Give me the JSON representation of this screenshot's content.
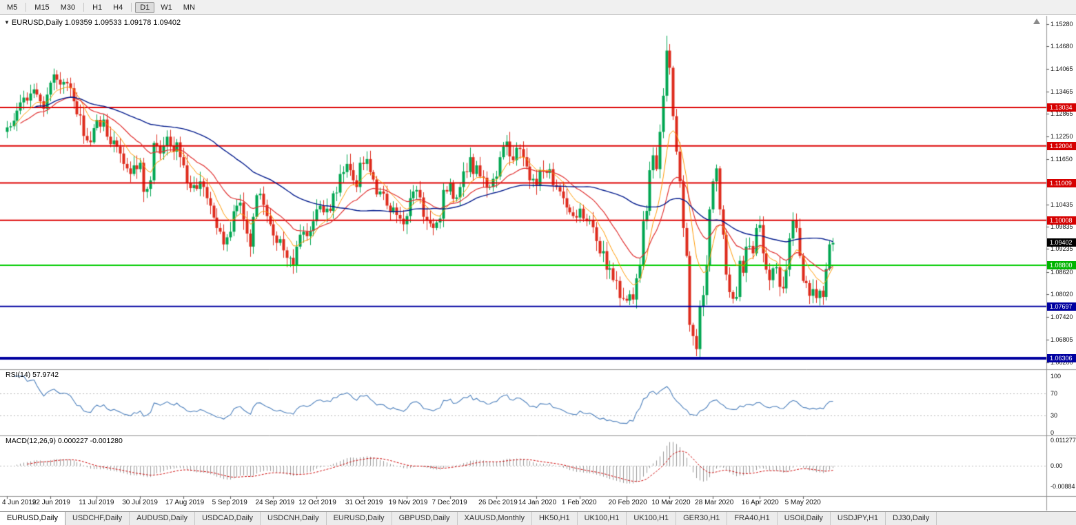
{
  "toolbar": {
    "groups": [
      [
        "M5"
      ],
      [
        "M15",
        "M30"
      ],
      [
        "H1",
        "H4"
      ],
      [
        "D1",
        "W1",
        "MN"
      ]
    ],
    "active": "D1"
  },
  "chart": {
    "title": "EURUSD,Daily 1.09359 1.09533 1.09178 1.09402",
    "price_axis": {
      "grid": [
        "1.15280",
        "1.14680",
        "1.14065",
        "1.13465",
        "1.12865",
        "1.12250",
        "1.11650",
        "1.10435",
        "1.09835",
        "1.09235",
        "1.08620",
        "1.08020",
        "1.07420",
        "1.06805",
        "1.06200"
      ],
      "badges": [
        {
          "text": "1.13034",
          "color": "#d60000"
        },
        {
          "text": "1.12004",
          "color": "#d60000"
        },
        {
          "text": "1.11009",
          "color": "#d60000"
        },
        {
          "text": "1.10008",
          "color": "#d60000"
        },
        {
          "text": "1.09402",
          "color": "#000000"
        },
        {
          "text": "1.08800",
          "color": "#00b400"
        },
        {
          "text": "1.07697",
          "color": "#0000a0"
        },
        {
          "text": "1.06306",
          "color": "#0000a0"
        }
      ]
    },
    "levels": {
      "red": [
        1.13034,
        1.12004,
        1.11009,
        1.10008
      ],
      "green": [
        1.088
      ],
      "blue": [
        {
          "p": 1.07697,
          "w": 2
        },
        {
          "p": 1.06306,
          "w": 4
        }
      ]
    },
    "time_axis": [
      {
        "t": "4 Jun 2019",
        "i": 0
      },
      {
        "t": "22 Jun 2019",
        "i": 13
      },
      {
        "t": "11 Jul 2019",
        "i": 27
      },
      {
        "t": "30 Jul 2019",
        "i": 40
      },
      {
        "t": "17 Aug 2019",
        "i": 53
      },
      {
        "t": "5 Sep 2019",
        "i": 67
      },
      {
        "t": "24 Sep 2019",
        "i": 80
      },
      {
        "t": "12 Oct 2019",
        "i": 93
      },
      {
        "t": "31 Oct 2019",
        "i": 107
      },
      {
        "t": "19 Nov 2019",
        "i": 120
      },
      {
        "t": "7 Dec 2019",
        "i": 133
      },
      {
        "t": "26 Dec 2019",
        "i": 147
      },
      {
        "t": "14 Jan 2020",
        "i": 159
      },
      {
        "t": "1 Feb 2020",
        "i": 172
      },
      {
        "t": "20 Feb 2020",
        "i": 186
      },
      {
        "t": "10 Mar 2020",
        "i": 199
      },
      {
        "t": "28 Mar 2020",
        "i": 212
      },
      {
        "t": "16 Apr 2020",
        "i": 226
      },
      {
        "t": "5 May 2020",
        "i": 239
      }
    ]
  },
  "rsi_panel": {
    "header": "RSI(14) 57.9742",
    "value": 57.9742,
    "axis": [
      "100",
      "70",
      "30",
      "0"
    ],
    "levels": [
      70,
      30
    ]
  },
  "macd_panel": {
    "header": "MACD(12,26,9) 0.000227 -0.001280",
    "main": 0.000227,
    "signal": -0.00128,
    "axis": [
      "0.011277",
      "0.00",
      "-0.00884"
    ]
  },
  "tabs": {
    "items": [
      "EURUSD,Daily",
      "USDCHF,Daily",
      "AUDUSD,Daily",
      "USDCAD,Daily",
      "USDCNH,Daily",
      "EURUSD,Daily",
      "GBPUSD,Daily",
      "XAUUSD,Monthly",
      "HK50,H1",
      "UK100,H1",
      "UK100,H1",
      "GER30,H1",
      "FRA40,H1",
      "USOil,Daily",
      "USDJPY,H1",
      "DJ30,Daily"
    ],
    "active_index": 0
  },
  "colors": {
    "up": "#00a651",
    "down": "#de2b1c",
    "res_red": "#dd0000",
    "sup_green": "#00cc00",
    "sup_blue": "#0000a0",
    "ma_fast": "#ff9900",
    "ma_mid": "#e03030",
    "ma_slow": "#001a8c",
    "rsi_line": "#4a7ebb",
    "macd_hist": "#9a9a9a",
    "macd_signal": "#cc0000",
    "divider": "#909090"
  },
  "chart_data": {
    "type": "candlestick",
    "symbol": "EURUSD",
    "period": "Daily",
    "y_range": [
      1.06064,
      1.15456
    ],
    "spike_high": 1.1496,
    "spike_low": 1.0636,
    "last_candle": {
      "o": 1.09359,
      "h": 1.09533,
      "l": 1.09178,
      "c": 1.09402
    },
    "indicators": {
      "rsi_period": 14,
      "macd": [
        12,
        26,
        9
      ],
      "ma_periods": [
        9,
        22,
        55
      ]
    },
    "closes": [
      1.125,
      1.1253,
      1.1268,
      1.1295,
      1.1317,
      1.133,
      1.1322,
      1.1341,
      1.1352,
      1.1338,
      1.132,
      1.13,
      1.1338,
      1.137,
      1.1392,
      1.1378,
      1.1365,
      1.1372,
      1.1368,
      1.1355,
      1.132,
      1.1285,
      1.1282,
      1.1227,
      1.1215,
      1.121,
      1.1248,
      1.127,
      1.1252,
      1.1271,
      1.1225,
      1.1205,
      1.1215,
      1.1198,
      1.118,
      1.1152,
      1.114,
      1.1125,
      1.1148,
      1.1138,
      1.1155,
      1.1077,
      1.1085,
      1.1108,
      1.1208,
      1.12,
      1.118,
      1.12,
      1.1225,
      1.12,
      1.1185,
      1.121,
      1.117,
      1.1148,
      1.11,
      1.1087,
      1.1095,
      1.1085,
      1.1105,
      1.109,
      1.106,
      1.104,
      1.1008,
      1.098,
      1.097,
      1.0936,
      1.0955,
      1.097,
      1.1025,
      1.104,
      1.1048,
      1.1003,
      1.0965,
      1.093,
      1.101,
      1.1068,
      1.1072,
      1.1042,
      1.1012,
      1.099,
      1.096,
      1.094,
      1.095,
      1.092,
      1.09,
      1.09,
      1.088,
      1.093,
      1.0962,
      1.097,
      1.0958,
      1.0972,
      1.0998,
      1.103,
      1.104,
      1.1022,
      1.1032,
      1.1026,
      1.1073,
      1.1075,
      1.1125,
      1.113,
      1.1152,
      1.1135,
      1.1108,
      1.109,
      1.1155,
      1.1152,
      1.1165,
      1.113,
      1.111,
      1.107,
      1.1078,
      1.1072,
      1.104,
      1.1022,
      1.1035,
      1.1015,
      1.1005,
      1.099,
      1.1012,
      1.106,
      1.1078,
      1.1082,
      1.1062,
      1.101,
      1.1002,
      1.0992,
      1.098,
      1.0995,
      1.1005,
      1.1082,
      1.1078,
      1.11,
      1.1058,
      1.1062,
      1.109,
      1.1132,
      1.113,
      1.117,
      1.1125,
      1.1148,
      1.1118,
      1.1115,
      1.1088,
      1.109,
      1.1112,
      1.1118,
      1.117,
      1.1198,
      1.1212,
      1.1172,
      1.1162,
      1.1195,
      1.1192,
      1.117,
      1.1145,
      1.1108,
      1.1112,
      1.1095,
      1.1135,
      1.1132,
      1.1128,
      1.1138,
      1.1095,
      1.109,
      1.1078,
      1.106,
      1.1035,
      1.1022,
      1.1012,
      1.1008,
      1.1032,
      1.1005,
      1.0998,
      1.1002,
      1.0982,
      1.0945,
      1.0912,
      1.0918,
      1.0868,
      1.0872,
      1.084,
      1.0838,
      1.0792,
      1.079,
      1.0785,
      1.0802,
      1.0788,
      1.0845,
      1.0882,
      1.0998,
      1.1026,
      1.1135,
      1.1175,
      1.1138,
      1.1238,
      1.1335,
      1.1456,
      1.141,
      1.128,
      1.1185,
      1.1105,
      1.098,
      1.0905,
      1.072,
      1.069,
      1.0655,
      1.077,
      1.08,
      1.088,
      1.103,
      1.1105,
      1.114,
      1.103,
      1.0962,
      1.0855,
      1.0808,
      1.079,
      1.0795,
      1.0892,
      1.086,
      1.093,
      1.0932,
      1.0912,
      1.098,
      1.0988,
      1.0912,
      1.0868,
      1.084,
      1.0872,
      1.0875,
      1.0822,
      1.0818,
      1.0868,
      1.0952,
      1.1002,
      1.098,
      1.0905,
      1.0838,
      1.0832,
      1.0798,
      1.0816,
      1.0792,
      1.0812,
      1.0795,
      1.087,
      1.0936,
      1.094
    ]
  }
}
